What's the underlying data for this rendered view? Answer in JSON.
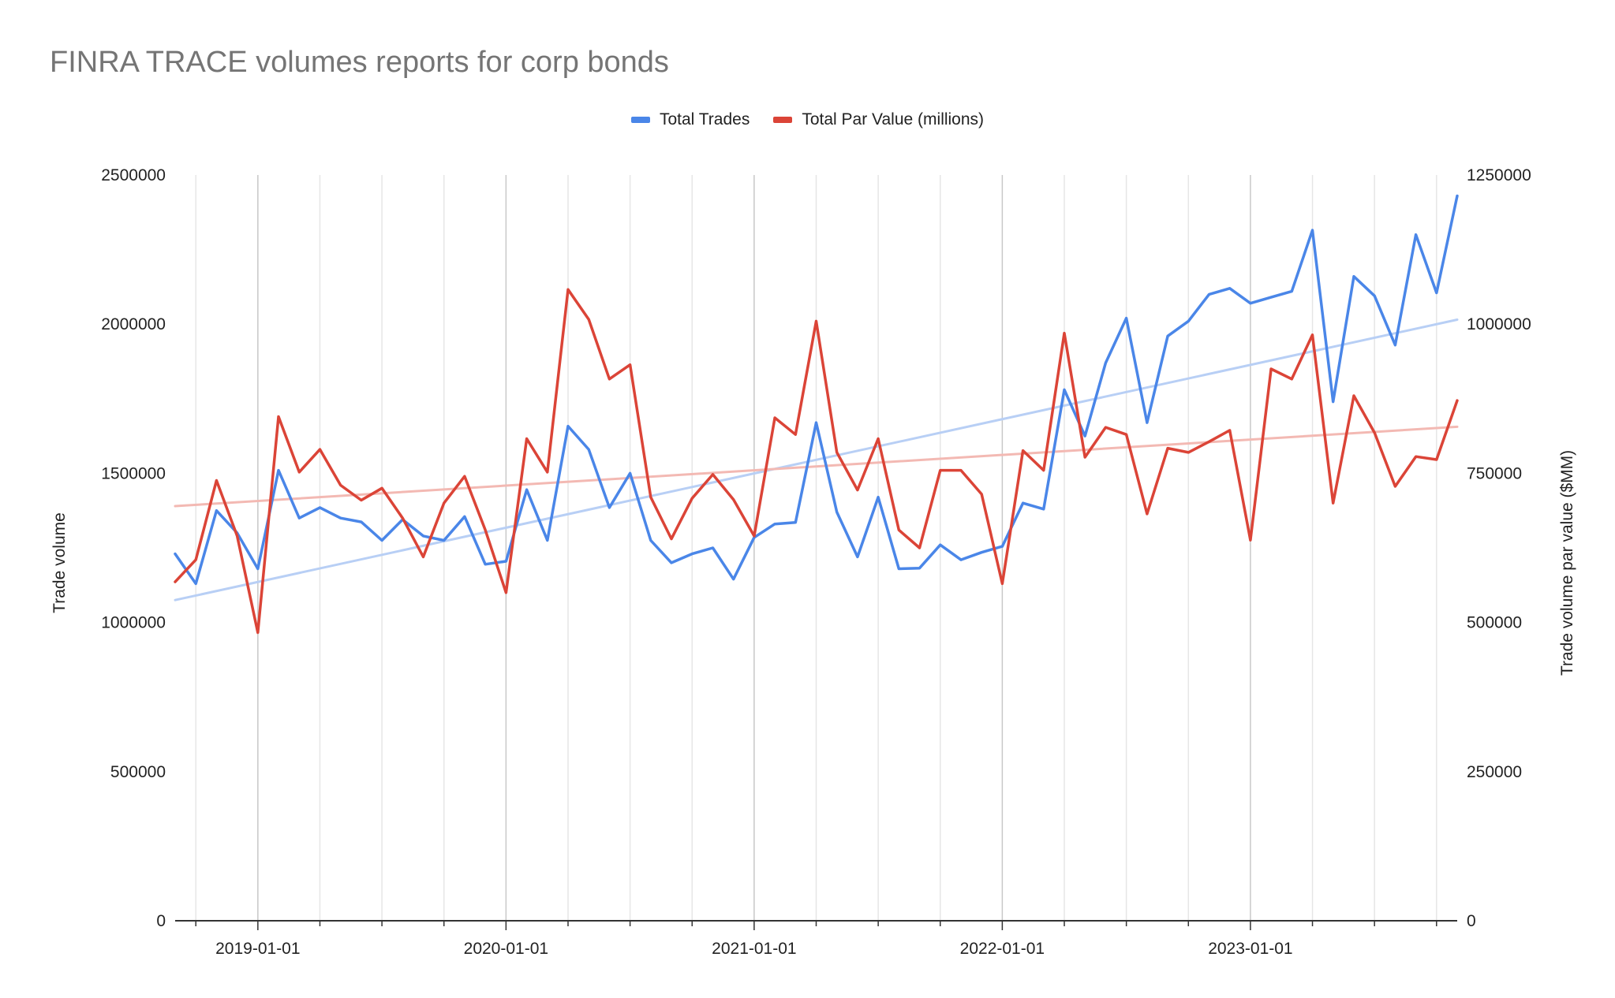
{
  "chart_data": {
    "type": "line",
    "title": "FINRA TRACE volumes reports for corp bonds",
    "ylabel": "Trade volume",
    "y2label": "Trade volume par value ($MM)",
    "ylim": [
      0,
      2500000
    ],
    "y2lim": [
      0,
      1250000
    ],
    "y_ticks": [
      "0",
      "500000",
      "1000000",
      "1500000",
      "2000000",
      "2500000"
    ],
    "y2_ticks": [
      "0",
      "250000",
      "500000",
      "750000",
      "1000000",
      "1250000"
    ],
    "x_ticks": [
      "2019-01-01",
      "2020-01-01",
      "2021-01-01",
      "2022-01-01",
      "2023-01-01"
    ],
    "x_start": "2018-09",
    "legend_position": "top",
    "grid": true,
    "series": [
      {
        "name": "Total Trades",
        "axis": "left",
        "color": "#4a86e8",
        "values": [
          1230000,
          1130000,
          1375000,
          1300000,
          1180000,
          1510000,
          1350000,
          1385000,
          1350000,
          1337000,
          1275000,
          1345000,
          1290000,
          1275000,
          1355000,
          1195000,
          1205000,
          1445000,
          1275000,
          1658000,
          1580000,
          1385000,
          1500000,
          1275000,
          1200000,
          1230000,
          1250000,
          1145000,
          1285000,
          1330000,
          1335000,
          1670000,
          1370000,
          1220000,
          1420000,
          1180000,
          1182000,
          1260000,
          1210000,
          1235000,
          1255000,
          1400000,
          1380000,
          1780000,
          1625000,
          1870000,
          2020000,
          1670000,
          1960000,
          2010000,
          2100000,
          2120000,
          2070000,
          2090000,
          2110000,
          2315000,
          1740000,
          2160000,
          2095000,
          1930000,
          2300000,
          2105000,
          2430000
        ]
      },
      {
        "name": "Total Par Value (millions)",
        "axis": "right",
        "color": "#db4437",
        "values": [
          568000,
          605000,
          738000,
          645000,
          483000,
          845000,
          752000,
          790000,
          730000,
          705000,
          725000,
          675000,
          610000,
          700000,
          745000,
          655000,
          550000,
          808000,
          752000,
          1058000,
          1008000,
          908000,
          932000,
          710000,
          640000,
          708000,
          748000,
          706000,
          645000,
          843000,
          815000,
          1005000,
          785000,
          722000,
          808000,
          655000,
          625000,
          755000,
          755000,
          715000,
          565000,
          788000,
          755000,
          985000,
          777000,
          827000,
          815000,
          682000,
          792000,
          785000,
          803000,
          822000,
          638000,
          925000,
          908000,
          982000,
          700000,
          880000,
          818000,
          728000,
          778000,
          773000,
          872000
        ]
      },
      {
        "name": "Total Trades trendline",
        "axis": "left",
        "color": "#b8cff5",
        "values": [
          1075000,
          2015000
        ]
      },
      {
        "name": "Total Par Value trendline",
        "axis": "right",
        "color": "#f3b9b3",
        "values": [
          695000,
          828000
        ]
      }
    ]
  }
}
